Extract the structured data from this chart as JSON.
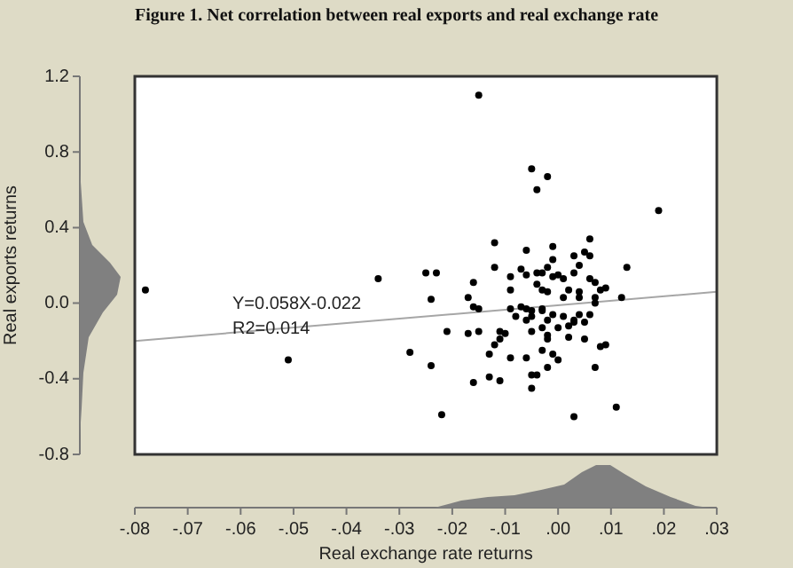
{
  "chart_data": {
    "type": "scatter",
    "title": "Figure 1. Net correlation between real exports and real exchange rate",
    "xlabel": "Real exchange rate returns",
    "ylabel": "Real exports returns",
    "annotations": [
      "Y=0.058X-0.022",
      "R2=0.014"
    ],
    "xlim": [
      -0.08,
      0.03
    ],
    "xticks": [
      {
        "value": -0.08,
        "label": "-.08"
      },
      {
        "value": -0.07,
        "label": "-.07"
      },
      {
        "value": -0.06,
        "label": "-.06"
      },
      {
        "value": -0.05,
        "label": "-.05"
      },
      {
        "value": -0.04,
        "label": "-.04"
      },
      {
        "value": -0.03,
        "label": "-.03"
      },
      {
        "value": -0.02,
        "label": "-.02"
      },
      {
        "value": -0.01,
        "label": "-.01"
      },
      {
        "value": 0,
        "label": ".00"
      },
      {
        "value": 0.01,
        "label": ".01"
      },
      {
        "value": 0.02,
        "label": ".02"
      },
      {
        "value": 0.03,
        "label": ".03"
      }
    ],
    "ylim": [
      -0.8,
      1.2
    ],
    "yticks": [
      -0.8,
      -0.4,
      {
        "value": 0,
        "label": "0.0"
      },
      0.4,
      0.8,
      1.2
    ],
    "grid": false,
    "legend": false,
    "marker": "circle",
    "series": [
      {
        "color": "#000000",
        "x": [
          -0.015,
          -0.005,
          -0.002,
          -0.004,
          0.019,
          -0.012,
          0.006,
          -0.001,
          -0.006,
          0.003,
          0.005,
          0.006,
          -0.001,
          0.004,
          0.013,
          -0.025,
          -0.023,
          -0.024,
          -0.016,
          -0.017,
          -0.016,
          -0.015,
          -0.012,
          -0.009,
          -0.009,
          -0.007,
          -0.006,
          -0.004,
          -0.003,
          -0.002,
          -0.001,
          0.0,
          0.001,
          0.003,
          0.006,
          0.007,
          0.008,
          0.009,
          0.012,
          0.007,
          0.007,
          0.004,
          0.004,
          0.002,
          0.001,
          -0.004,
          -0.003,
          -0.002,
          -0.007,
          -0.006,
          -0.005,
          -0.003,
          -0.003,
          -0.009,
          -0.008,
          -0.006,
          -0.005,
          -0.002,
          -0.001,
          0.001,
          0.003,
          0.004,
          0.006,
          0.005,
          -0.011,
          -0.01,
          -0.005,
          -0.003,
          0.0,
          0.002,
          0.003,
          -0.015,
          -0.017,
          -0.021,
          -0.012,
          -0.011,
          -0.002,
          -0.002,
          0.002,
          0.005,
          0.008,
          0.009,
          -0.003,
          -0.001,
          0.0,
          -0.013,
          -0.009,
          -0.006,
          -0.002,
          0.007,
          -0.024,
          -0.028,
          -0.013,
          -0.011,
          -0.016,
          -0.005,
          -0.004,
          -0.005,
          -0.022,
          0.003,
          0.011,
          -0.078,
          -0.034,
          -0.051
        ],
        "values": [
          1.1,
          0.71,
          0.67,
          0.6,
          0.49,
          0.32,
          0.34,
          0.3,
          0.28,
          0.25,
          0.27,
          0.25,
          0.23,
          0.2,
          0.19,
          0.16,
          0.16,
          0.02,
          0.11,
          0.03,
          -0.02,
          -0.03,
          0.19,
          0.14,
          0.07,
          0.18,
          0.15,
          0.16,
          0.16,
          0.19,
          0.14,
          0.15,
          0.13,
          0.16,
          0.13,
          0.11,
          0.07,
          0.08,
          0.03,
          0.0,
          0.03,
          0.06,
          0.03,
          0.07,
          0.03,
          0.1,
          0.07,
          0.06,
          -0.02,
          -0.03,
          -0.04,
          -0.03,
          -0.04,
          -0.03,
          -0.07,
          -0.09,
          -0.07,
          -0.09,
          -0.06,
          -0.07,
          -0.09,
          -0.06,
          -0.06,
          -0.1,
          -0.15,
          -0.16,
          -0.15,
          -0.13,
          -0.13,
          -0.12,
          -0.1,
          -0.15,
          -0.16,
          -0.15,
          -0.22,
          -0.19,
          -0.19,
          -0.17,
          -0.18,
          -0.19,
          -0.23,
          -0.22,
          -0.25,
          -0.27,
          -0.3,
          -0.27,
          -0.29,
          -0.29,
          -0.34,
          -0.34,
          -0.33,
          -0.26,
          -0.39,
          -0.41,
          -0.42,
          -0.38,
          -0.38,
          -0.45,
          -0.59,
          -0.6,
          -0.55,
          0.07,
          0.13,
          -0.3
        ]
      },
      {
        "type": "line",
        "color": "#a6a6a6",
        "x": [
          -0.08,
          0.03
        ],
        "values": [
          -0.2,
          0.06
        ],
        "marker": "none"
      }
    ]
  }
}
